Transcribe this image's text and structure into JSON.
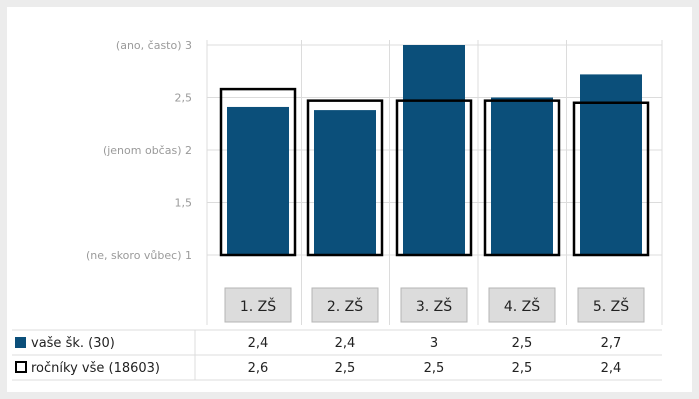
{
  "chart_data": {
    "type": "bar",
    "categories": [
      "1. ZŠ",
      "2. ZŠ",
      "3. ZŠ",
      "4. ZŠ",
      "5. ZŠ"
    ],
    "series": [
      {
        "name": "vaše šk. (30)",
        "values": [
          2.41,
          2.38,
          3.0,
          2.5,
          2.72
        ],
        "table_values": [
          "2,4",
          "2,4",
          "3",
          "2,5",
          "2,7"
        ],
        "style": "filled",
        "color": "#0b4f7a"
      },
      {
        "name": "ročníky vše (18603)",
        "values": [
          2.58,
          2.47,
          2.47,
          2.47,
          2.45
        ],
        "table_values": [
          "2,6",
          "2,5",
          "2,5",
          "2,5",
          "2,4"
        ],
        "style": "outline",
        "color": "#000000"
      }
    ],
    "y_ticks": [
      {
        "value": 3,
        "label": "(ano, často) 3"
      },
      {
        "value": 2.5,
        "label": "2,5"
      },
      {
        "value": 2,
        "label": "(jenom občas) 2"
      },
      {
        "value": 1.5,
        "label": "1,5"
      },
      {
        "value": 1,
        "label": "(ne, skoro vůbec) 1"
      }
    ],
    "ylim": [
      1,
      3
    ],
    "grid": true,
    "legend": "table-bottom-left",
    "colors": {
      "bar": "#0b4f7a",
      "outline": "#000000",
      "grid": "#dcdcdc",
      "tick_text": "#9a9a9a",
      "category_box": "#dcdcdc"
    }
  }
}
